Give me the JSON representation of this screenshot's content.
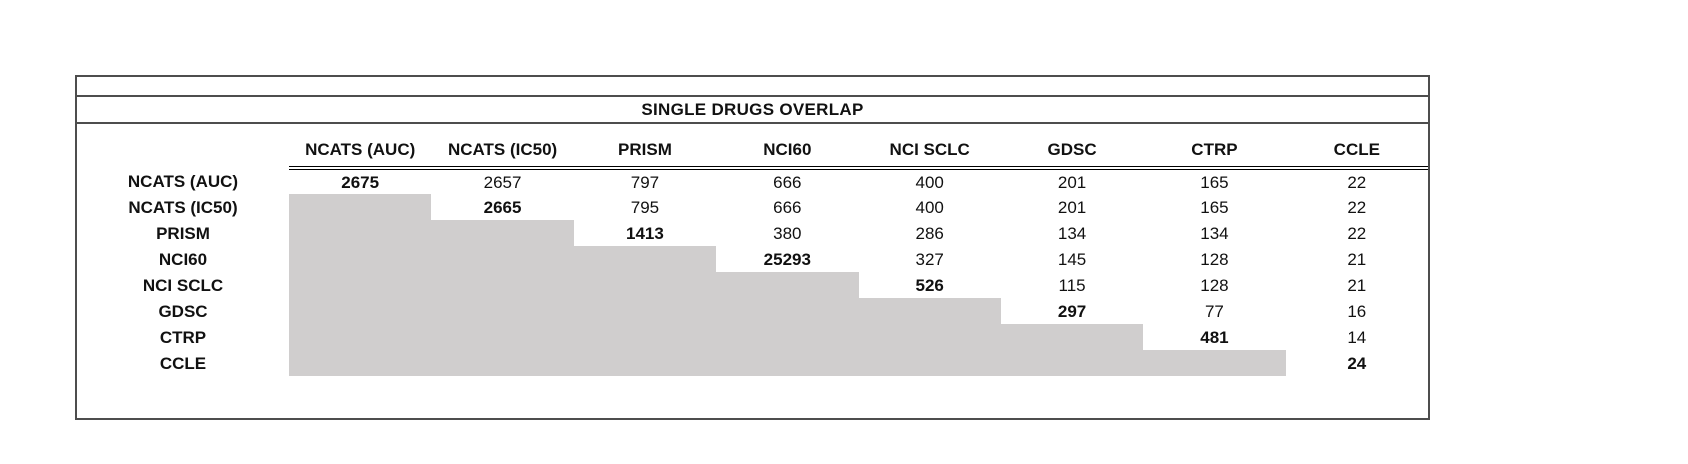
{
  "title": "SINGLE DRUGS OVERLAP",
  "chart_data": {
    "type": "table",
    "title": "SINGLE DRUGS OVERLAP",
    "columns": [
      "NCATS (AUC)",
      "NCATS (IC50)",
      "PRISM",
      "NCI60",
      "NCI SCLC",
      "GDSC",
      "CTRP",
      "CCLE"
    ],
    "row_labels": [
      "NCATS (AUC)",
      "NCATS (IC50)",
      "PRISM",
      "NCI60",
      "NCI SCLC",
      "GDSC",
      "CTRP",
      "CCLE"
    ],
    "matrix": [
      [
        2675,
        2657,
        797,
        666,
        400,
        201,
        165,
        22
      ],
      [
        null,
        2665,
        795,
        666,
        400,
        201,
        165,
        22
      ],
      [
        null,
        null,
        1413,
        380,
        286,
        134,
        134,
        22
      ],
      [
        null,
        null,
        null,
        25293,
        327,
        145,
        128,
        21
      ],
      [
        null,
        null,
        null,
        null,
        526,
        115,
        128,
        21
      ],
      [
        null,
        null,
        null,
        null,
        null,
        297,
        77,
        16
      ],
      [
        null,
        null,
        null,
        null,
        null,
        null,
        481,
        14
      ],
      [
        null,
        null,
        null,
        null,
        null,
        null,
        null,
        24
      ]
    ],
    "layout_hints": {
      "diagonal_bold": true,
      "lower_triangle_shaded": true,
      "header_rule": "double",
      "values_alignment": "center"
    }
  },
  "styles": {
    "shaded_color": "#d0cece",
    "border_color": "#4d4d4d",
    "rule_color": "#000000",
    "text_color": "#111111"
  }
}
